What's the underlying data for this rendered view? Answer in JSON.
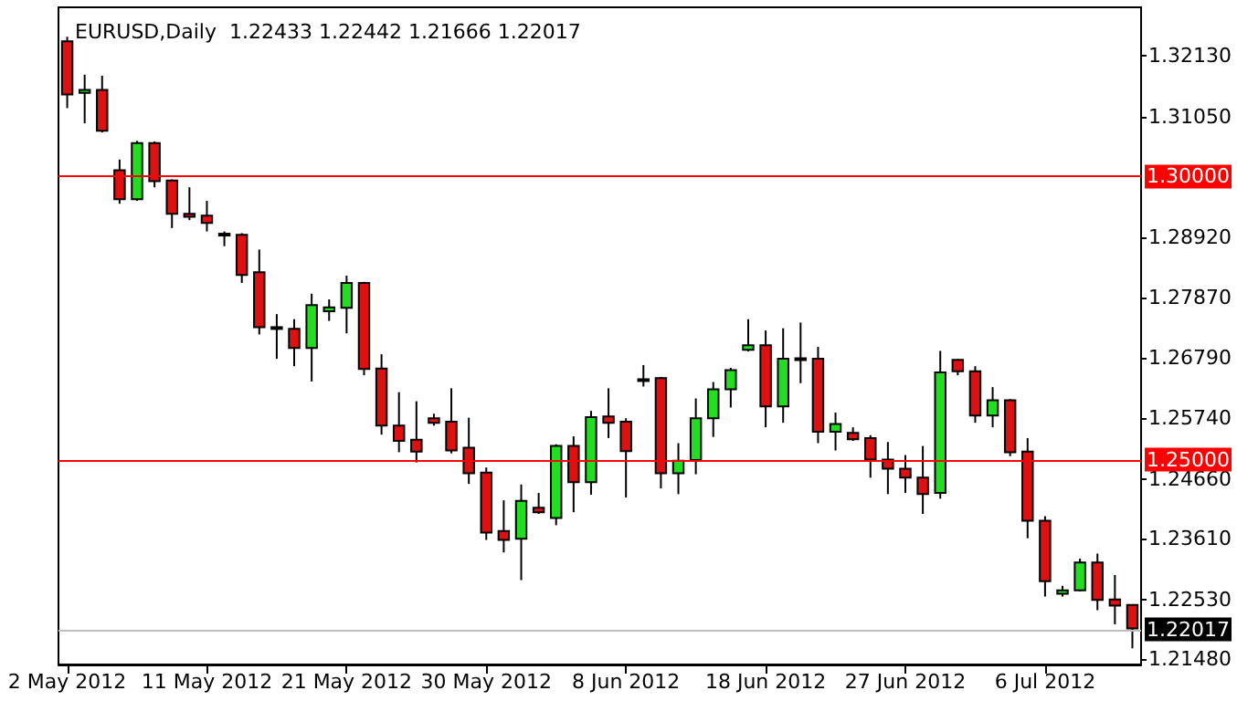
{
  "chart_data": {
    "type": "candlestick",
    "title": "EURUSD,Daily  1.22433 1.22442 1.21666 1.22017",
    "categories": [
      "2 May 2012",
      null,
      null,
      null,
      null,
      null,
      null,
      null,
      "11 May 2012",
      null,
      null,
      null,
      null,
      null,
      null,
      null,
      "21 May 2012",
      null,
      null,
      null,
      null,
      null,
      null,
      null,
      "30 May 2012",
      null,
      null,
      null,
      null,
      null,
      null,
      null,
      "8 Jun 2012",
      null,
      null,
      null,
      null,
      null,
      null,
      null,
      "18 Jun 2012",
      null,
      null,
      null,
      null,
      null,
      null,
      null,
      "27 Jun 2012",
      null,
      null,
      null,
      null,
      null,
      null,
      null,
      "6 Jul 2012",
      null,
      null,
      null,
      null,
      null
    ],
    "ohlc": [
      [
        1.3239,
        1.3247,
        1.3121,
        1.3145
      ],
      [
        1.3148,
        1.318,
        1.3094,
        1.3153
      ],
      [
        1.3153,
        1.3178,
        1.3078,
        1.3081
      ],
      [
        1.3011,
        1.303,
        1.2952,
        1.296
      ],
      [
        1.296,
        1.3063,
        1.2957,
        1.3059
      ],
      [
        1.3059,
        1.3062,
        1.2981,
        1.2992
      ],
      [
        1.2993,
        1.2995,
        1.2909,
        1.2934
      ],
      [
        1.2934,
        1.2981,
        1.2923,
        1.2929
      ],
      [
        1.2931,
        1.2957,
        1.2903,
        1.2918
      ],
      [
        1.2899,
        1.2903,
        1.2877,
        1.2896
      ],
      [
        1.2897,
        1.29,
        1.2812,
        1.2826
      ],
      [
        1.2831,
        1.2871,
        1.2721,
        1.2734
      ],
      [
        1.2734,
        1.2757,
        1.2678,
        1.2731
      ],
      [
        1.2731,
        1.2748,
        1.2665,
        1.2697
      ],
      [
        1.2697,
        1.2793,
        1.2638,
        1.2773
      ],
      [
        1.2762,
        1.2783,
        1.2745,
        1.2769
      ],
      [
        1.2768,
        1.2825,
        1.2723,
        1.2812
      ],
      [
        1.2812,
        1.2814,
        1.2649,
        1.266
      ],
      [
        1.2661,
        1.2686,
        1.2544,
        1.256
      ],
      [
        1.256,
        1.2619,
        1.2513,
        1.2533
      ],
      [
        1.2535,
        1.2603,
        1.2495,
        1.2514
      ],
      [
        1.2573,
        1.2581,
        1.256,
        1.2565
      ],
      [
        1.2567,
        1.2626,
        1.2511,
        1.2516
      ],
      [
        1.2521,
        1.2574,
        1.2457,
        1.2476
      ],
      [
        1.2477,
        1.2486,
        1.2358,
        1.2371
      ],
      [
        1.2374,
        1.2428,
        1.2336,
        1.2358
      ],
      [
        1.236,
        1.2456,
        1.2287,
        1.2427
      ],
      [
        1.2415,
        1.2441,
        1.2404,
        1.2407
      ],
      [
        1.2397,
        1.2527,
        1.2384,
        1.2524
      ],
      [
        1.2524,
        1.2541,
        1.2407,
        1.246
      ],
      [
        1.246,
        1.2586,
        1.2438,
        1.2575
      ],
      [
        1.2576,
        1.2626,
        1.2538,
        1.2565
      ],
      [
        1.2567,
        1.2573,
        1.2433,
        1.2515
      ],
      [
        1.2642,
        1.2667,
        1.2629,
        1.264
      ],
      [
        1.2644,
        1.2646,
        1.2449,
        1.2476
      ],
      [
        1.2476,
        1.2529,
        1.2439,
        1.2498
      ],
      [
        1.2499,
        1.2608,
        1.2474,
        1.2573
      ],
      [
        1.2573,
        1.2637,
        1.254,
        1.2624
      ],
      [
        1.2624,
        1.2662,
        1.2592,
        1.2658
      ],
      [
        1.2694,
        1.2748,
        1.2691,
        1.2702
      ],
      [
        1.2702,
        1.2728,
        1.2557,
        1.2594
      ],
      [
        1.2594,
        1.2732,
        1.2565,
        1.2678
      ],
      [
        1.2679,
        1.2742,
        1.2635,
        1.2677
      ],
      [
        1.2678,
        1.2699,
        1.2529,
        1.2549
      ],
      [
        1.2549,
        1.2583,
        1.2516,
        1.2563
      ],
      [
        1.2547,
        1.2557,
        1.2533,
        1.2536
      ],
      [
        1.2538,
        1.2543,
        1.2468,
        1.25
      ],
      [
        1.25,
        1.2531,
        1.2439,
        1.2484
      ],
      [
        1.2484,
        1.2508,
        1.2441,
        1.2468
      ],
      [
        1.2468,
        1.2524,
        1.2404,
        1.2439
      ],
      [
        1.2441,
        1.2692,
        1.2431,
        1.2654
      ],
      [
        1.2676,
        1.2678,
        1.2649,
        1.2656
      ],
      [
        1.2656,
        1.2665,
        1.2565,
        1.2578
      ],
      [
        1.2578,
        1.2628,
        1.2557,
        1.2605
      ],
      [
        1.2605,
        1.2607,
        1.2506,
        1.2513
      ],
      [
        1.2514,
        1.2538,
        1.2361,
        1.2392
      ],
      [
        1.2392,
        1.24,
        1.2258,
        1.2285
      ],
      [
        1.2263,
        1.2277,
        1.2258,
        1.2269
      ],
      [
        1.2269,
        1.2325,
        1.2267,
        1.2318
      ],
      [
        1.2318,
        1.2334,
        1.2234,
        1.2252
      ],
      [
        1.2253,
        1.2296,
        1.2209,
        1.2242
      ],
      [
        1.22433,
        1.22442,
        1.21666,
        1.22017
      ]
    ],
    "colors": [
      "#dd1111",
      "#22dd22",
      "#dd1111",
      "#dd1111",
      "#22dd22",
      "#dd1111",
      "#dd1111",
      "#dd1111",
      "#dd1111",
      "#dd1111",
      "#dd1111",
      "#dd1111",
      "#dd1111",
      "#dd1111",
      "#22dd22",
      "#22dd22",
      "#22dd22",
      "#dd1111",
      "#dd1111",
      "#dd1111",
      "#dd1111",
      "#dd1111",
      "#dd1111",
      "#dd1111",
      "#dd1111",
      "#dd1111",
      "#22dd22",
      "#dd1111",
      "#22dd22",
      "#dd1111",
      "#22dd22",
      "#dd1111",
      "#dd1111",
      "#dd1111",
      "#dd1111",
      "#22dd22",
      "#22dd22",
      "#22dd22",
      "#22dd22",
      "#22dd22",
      "#dd1111",
      "#22dd22",
      "#dd1111",
      "#dd1111",
      "#22dd22",
      "#dd1111",
      "#dd1111",
      "#dd1111",
      "#dd1111",
      "#dd1111",
      "#22dd22",
      "#dd1111",
      "#dd1111",
      "#22dd22",
      "#dd1111",
      "#dd1111",
      "#dd1111",
      "#22dd22",
      "#22dd22",
      "#dd1111",
      "#dd1111",
      "#dd1111"
    ],
    "ylim": [
      1.2138,
      1.3299
    ],
    "yticks": [
      {
        "value": 1.2148,
        "label": "1.21480"
      },
      {
        "value": 1.2253,
        "label": "1.22530"
      },
      {
        "value": 1.2361,
        "label": "1.23610"
      },
      {
        "value": 1.2466,
        "label": "1.24660"
      },
      {
        "value": 1.2574,
        "label": "1.25740"
      },
      {
        "value": 1.2679,
        "label": "1.26790"
      },
      {
        "value": 1.2787,
        "label": "1.27870"
      },
      {
        "value": 1.2892,
        "label": "1.28920"
      },
      {
        "value": 1.3105,
        "label": "1.31050"
      },
      {
        "value": 1.3213,
        "label": "1.32130"
      }
    ],
    "ref_lines": [
      {
        "axis": "y",
        "value": 1.3,
        "label": "1.30000",
        "color": "#ff0000"
      },
      {
        "axis": "y",
        "value": 1.25,
        "label": "1.25000",
        "color": "#ff0000"
      },
      {
        "axis": "y",
        "value": 1.22017,
        "label": "1.22017",
        "color": "#c0c0c0"
      }
    ],
    "grid": false
  }
}
